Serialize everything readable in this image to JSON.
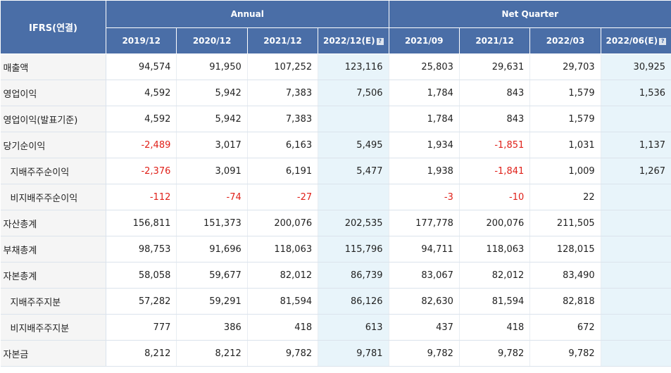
{
  "header": {
    "corner": "IFRS(연결)",
    "group_annual": "Annual",
    "group_quarter": "Net Quarter",
    "columns": [
      "2019/12",
      "2020/12",
      "2021/12",
      "2022/12(E)",
      "2021/09",
      "2021/12",
      "2022/03",
      "2022/06(E)"
    ],
    "help_icon": "question-square-icon"
  },
  "estimate_columns": [
    3,
    7
  ],
  "colors": {
    "header_bg": "#4a6ea7",
    "estimate_bg": "#e8f4fa",
    "negative": "#e0211a",
    "label_bg": "#f5f5f5"
  },
  "rows": [
    {
      "label": "매출액",
      "sub": false,
      "values": [
        "94,574",
        "91,950",
        "107,252",
        "123,116",
        "25,803",
        "29,631",
        "29,703",
        "30,925"
      ]
    },
    {
      "label": "영업이익",
      "sub": false,
      "values": [
        "4,592",
        "5,942",
        "7,383",
        "7,506",
        "1,784",
        "843",
        "1,579",
        "1,536"
      ]
    },
    {
      "label": "영업이익(발표기준)",
      "sub": false,
      "values": [
        "4,592",
        "5,942",
        "7,383",
        "",
        "1,784",
        "843",
        "1,579",
        ""
      ]
    },
    {
      "label": "당기순이익",
      "sub": false,
      "values": [
        "-2,489",
        "3,017",
        "6,163",
        "5,495",
        "1,934",
        "-1,851",
        "1,031",
        "1,137"
      ]
    },
    {
      "label": "지배주주순이익",
      "sub": true,
      "values": [
        "-2,376",
        "3,091",
        "6,191",
        "5,477",
        "1,938",
        "-1,841",
        "1,009",
        "1,267"
      ]
    },
    {
      "label": "비지배주주순이익",
      "sub": true,
      "values": [
        "-112",
        "-74",
        "-27",
        "",
        "-3",
        "-10",
        "22",
        ""
      ]
    },
    {
      "label": "자산총계",
      "sub": false,
      "values": [
        "156,811",
        "151,373",
        "200,076",
        "202,535",
        "177,778",
        "200,076",
        "211,505",
        ""
      ]
    },
    {
      "label": "부채총계",
      "sub": false,
      "values": [
        "98,753",
        "91,696",
        "118,063",
        "115,796",
        "94,711",
        "118,063",
        "128,015",
        ""
      ]
    },
    {
      "label": "자본총계",
      "sub": false,
      "values": [
        "58,058",
        "59,677",
        "82,012",
        "86,739",
        "83,067",
        "82,012",
        "83,490",
        ""
      ]
    },
    {
      "label": "지배주주지분",
      "sub": true,
      "values": [
        "57,282",
        "59,291",
        "81,594",
        "86,126",
        "82,630",
        "81,594",
        "82,818",
        ""
      ]
    },
    {
      "label": "비지배주주지분",
      "sub": true,
      "values": [
        "777",
        "386",
        "418",
        "613",
        "437",
        "418",
        "672",
        ""
      ]
    },
    {
      "label": "자본금",
      "sub": false,
      "values": [
        "8,212",
        "8,212",
        "9,782",
        "9,781",
        "9,782",
        "9,782",
        "9,782",
        ""
      ]
    }
  ]
}
